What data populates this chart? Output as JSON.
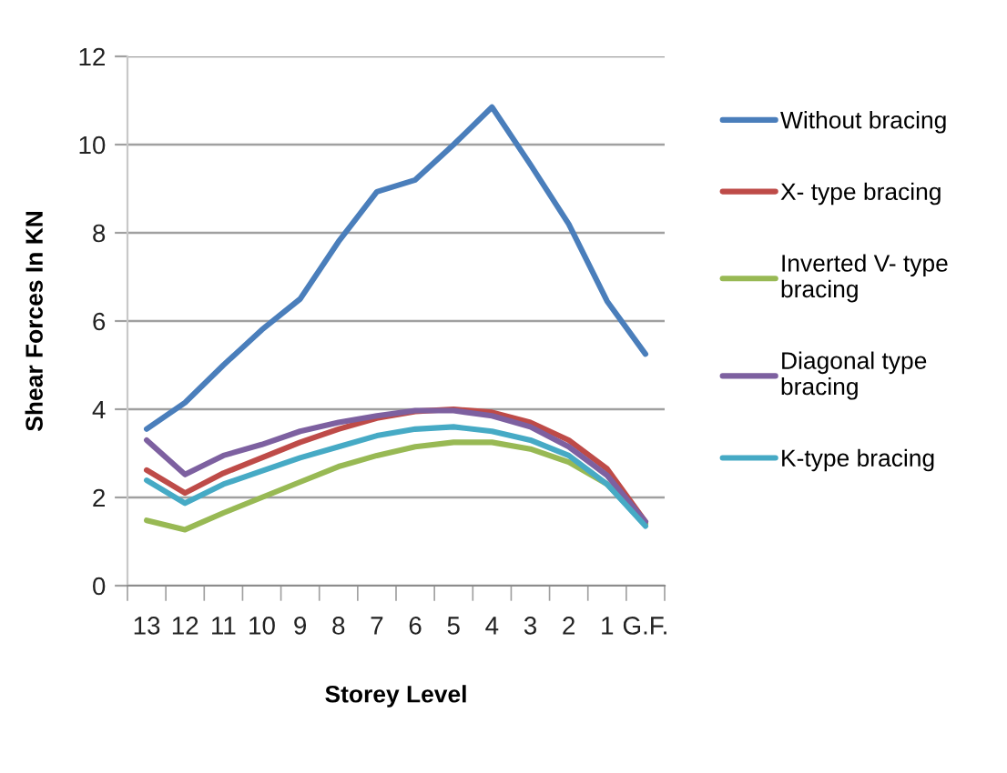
{
  "chart_data": {
    "type": "line",
    "xlabel": "Storey Level",
    "ylabel": "Shear Forces In KN",
    "categories": [
      "13",
      "12",
      "11",
      "10",
      "9",
      "8",
      "7",
      "6",
      "5",
      "4",
      "3",
      "2",
      "1",
      "G.F."
    ],
    "ylim": [
      0,
      12
    ],
    "yticks": [
      0,
      2,
      4,
      6,
      8,
      10,
      12
    ],
    "grid": "y",
    "legend": "right",
    "series": [
      {
        "name": "Without bracing",
        "color": "#4a7ebb",
        "values": [
          3.55,
          4.15,
          5.0,
          5.8,
          6.5,
          7.8,
          8.93,
          9.2,
          10.0,
          10.85,
          9.55,
          8.2,
          6.45,
          5.25
        ]
      },
      {
        "name": "X- type bracing",
        "color": "#be4b48",
        "values": [
          2.62,
          2.1,
          2.55,
          2.9,
          3.25,
          3.55,
          3.8,
          3.95,
          4.0,
          3.93,
          3.7,
          3.3,
          2.65,
          1.45
        ]
      },
      {
        "name": "Inverted V- type\nbracing",
        "color": "#98b954",
        "values": [
          1.48,
          1.27,
          1.65,
          2.0,
          2.35,
          2.7,
          2.95,
          3.15,
          3.25,
          3.25,
          3.1,
          2.8,
          2.3,
          1.4
        ]
      },
      {
        "name": "Diagonal type\nbracing",
        "color": "#7d60a0",
        "values": [
          3.3,
          2.52,
          2.95,
          3.2,
          3.5,
          3.7,
          3.85,
          3.97,
          3.97,
          3.85,
          3.6,
          3.15,
          2.5,
          1.45
        ]
      },
      {
        "name": "K-type bracing",
        "color": "#46aac5",
        "values": [
          2.39,
          1.87,
          2.3,
          2.6,
          2.9,
          3.15,
          3.4,
          3.55,
          3.6,
          3.5,
          3.3,
          2.95,
          2.3,
          1.35
        ]
      }
    ]
  }
}
